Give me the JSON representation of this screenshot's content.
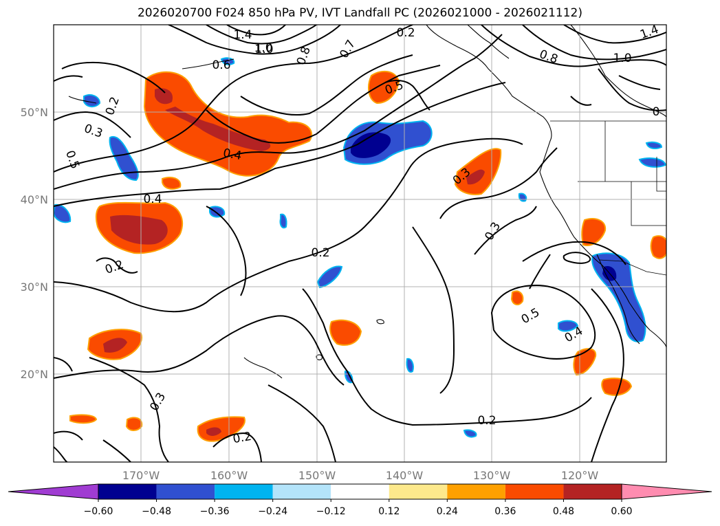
{
  "title": "2026020700 F024 850 hPa PV, IVT Landfall PC (2026021000 - 2026021112)",
  "map": {
    "lon_ticks": [
      "170°W",
      "160°W",
      "150°W",
      "140°W",
      "130°W",
      "120°W"
    ],
    "lat_ticks": [
      "50°N",
      "40°N",
      "30°N",
      "20°N"
    ],
    "grid": true
  },
  "colorbar": {
    "tick_labels": [
      "−0.60",
      "−0.48",
      "−0.36",
      "−0.24",
      "−0.12",
      "0.12",
      "0.24",
      "0.36",
      "0.48",
      "0.60"
    ],
    "colors": [
      "#a03cd2",
      "#000090",
      "#3050d0",
      "#00b4f0",
      "#b4e4fa",
      "#ffffff",
      "#fde98c",
      "#fea000",
      "#fa4b00",
      "#b42323",
      "#ff8cb0"
    ]
  },
  "contour_labels": [
    "1.4",
    "1.0",
    "0.8",
    "0.7",
    "0.6",
    "0.5",
    "0.2",
    "0.3",
    "0.5",
    "0.4",
    "0.4",
    "0.3",
    "0.2",
    "0.3",
    "0.2",
    "0.5",
    "0.4",
    "0.3",
    "0.2",
    "0.2",
    "1.0",
    "1.0",
    "1.4",
    "0.8",
    "0.2",
    "0"
  ]
}
